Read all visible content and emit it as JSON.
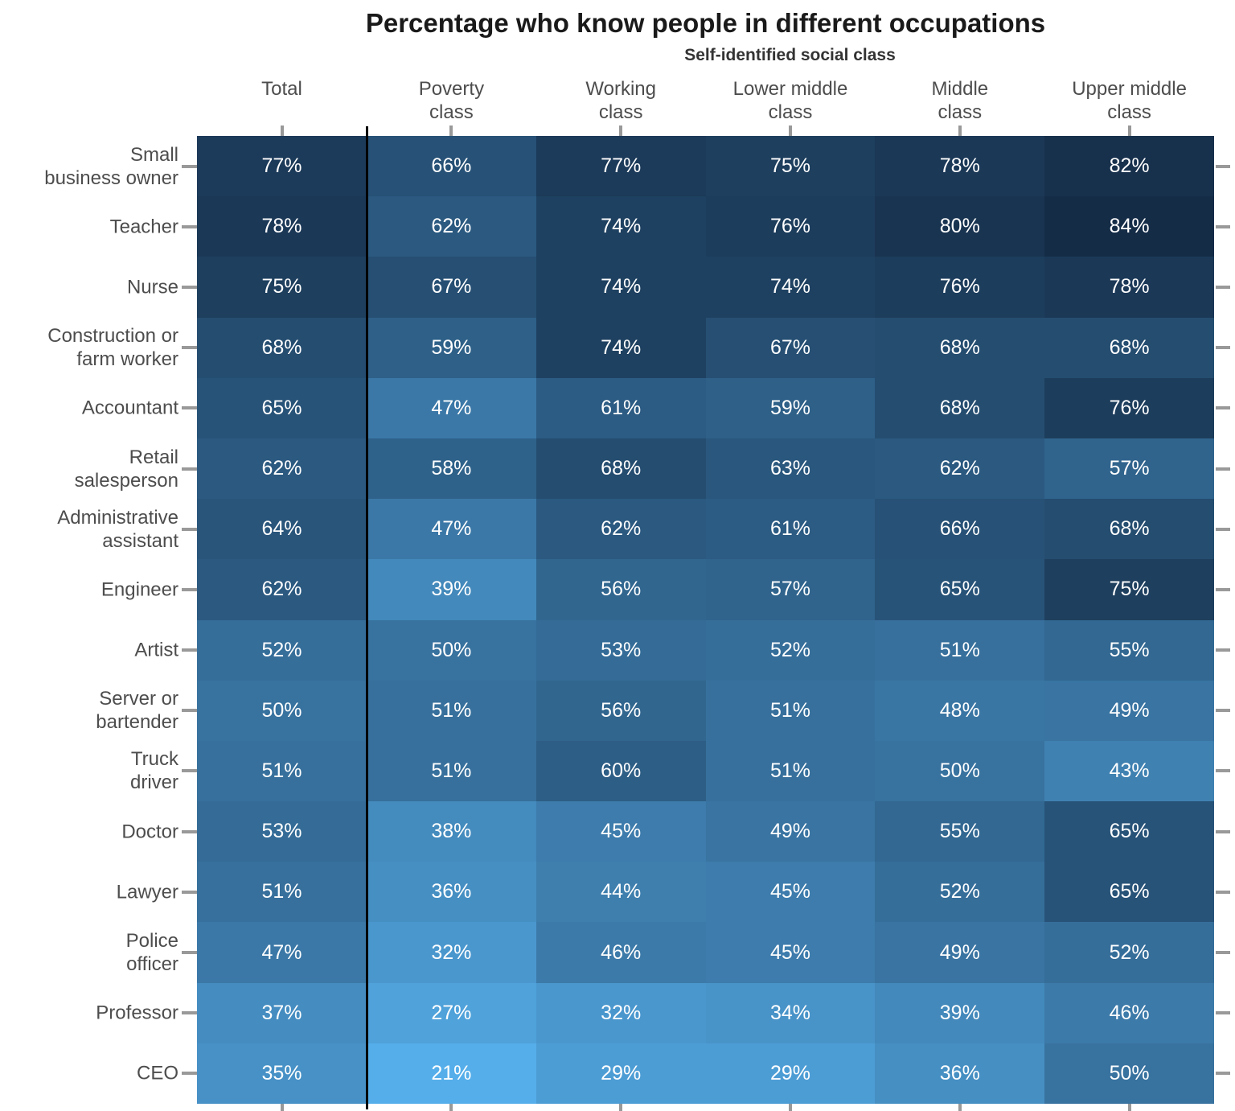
{
  "title": "Percentage who know people in different occupations",
  "subtitle": "Self-identified social class",
  "colors": {
    "background": "#ffffff",
    "title_text": "#1a1a1a",
    "subtitle_text": "#333333",
    "axis_label_text": "#4d4d4d",
    "cell_text": "#ffffff",
    "column_separator": "#000000",
    "tick_mark": "#999999"
  },
  "chart_data": {
    "type": "heatmap",
    "title": "Percentage who know people in different occupations",
    "subtitle": "Self-identified social class",
    "value_suffix": "%",
    "legend_position": "none",
    "grid": "off",
    "columns": [
      "Total",
      "Poverty class",
      "Working class",
      "Lower middle class",
      "Middle class",
      "Upper middle class"
    ],
    "column_header_lines": [
      "Total",
      "Poverty\nclass",
      "Working\nclass",
      "Lower middle\nclass",
      "Middle\nclass",
      "Upper middle\nclass"
    ],
    "rows": [
      "Small business owner",
      "Teacher",
      "Nurse",
      "Construction or farm worker",
      "Accountant",
      "Retail salesperson",
      "Administrative assistant",
      "Engineer",
      "Artist",
      "Server or bartender",
      "Truck driver",
      "Doctor",
      "Lawyer",
      "Police officer",
      "Professor",
      "CEO"
    ],
    "row_label_lines": [
      "Small\nbusiness owner",
      "Teacher",
      "Nurse",
      "Construction or\nfarm worker",
      "Accountant",
      "Retail\nsalesperson",
      "Administrative\nassistant",
      "Engineer",
      "Artist",
      "Server or\nbartender",
      "Truck\ndriver",
      "Doctor",
      "Lawyer",
      "Police\nofficer",
      "Professor",
      "CEO"
    ],
    "values": [
      [
        77,
        66,
        77,
        75,
        78,
        82
      ],
      [
        78,
        62,
        74,
        76,
        80,
        84
      ],
      [
        75,
        67,
        74,
        74,
        76,
        78
      ],
      [
        68,
        59,
        74,
        67,
        68,
        68
      ],
      [
        65,
        47,
        61,
        59,
        68,
        76
      ],
      [
        62,
        58,
        68,
        63,
        62,
        57
      ],
      [
        64,
        47,
        62,
        61,
        66,
        68
      ],
      [
        62,
        39,
        56,
        57,
        65,
        75
      ],
      [
        52,
        50,
        53,
        52,
        51,
        55
      ],
      [
        50,
        51,
        56,
        51,
        48,
        49
      ],
      [
        51,
        51,
        60,
        51,
        50,
        43
      ],
      [
        53,
        38,
        45,
        49,
        55,
        65
      ],
      [
        51,
        36,
        44,
        45,
        52,
        65
      ],
      [
        47,
        32,
        46,
        45,
        49,
        52
      ],
      [
        37,
        27,
        32,
        34,
        39,
        46
      ],
      [
        35,
        21,
        29,
        29,
        36,
        50
      ]
    ],
    "colormap": {
      "min_value": 21,
      "max_value": 84,
      "min_color": "#55aeea",
      "max_color": "#152c47"
    },
    "separator_after_column_index": 0
  }
}
